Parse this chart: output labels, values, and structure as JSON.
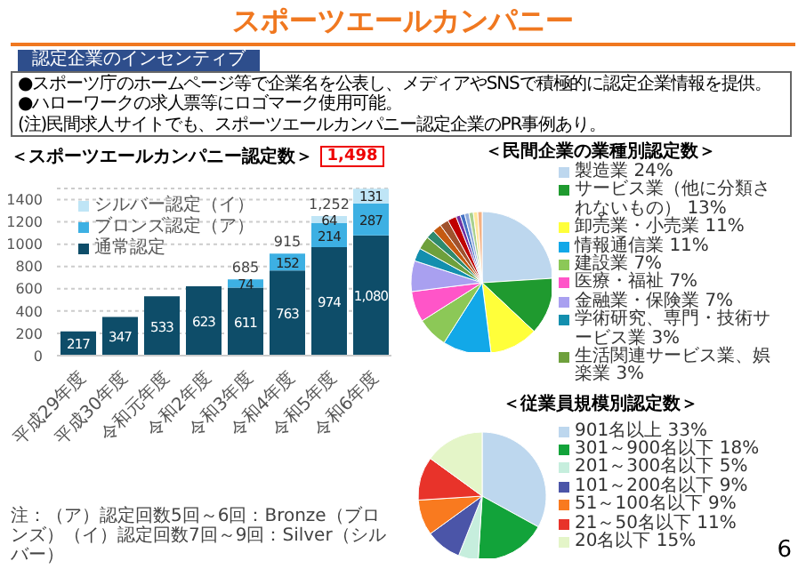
{
  "chart_data": [
    {
      "type": "other",
      "title": "スポーツエールカンパニー",
      "subtitle": "認定企業のインセンティブ",
      "annotations": [
        "●スポーツ庁のホームページ等で企業名を公表し、メディアやSNSで積極的に認定企業情報を提供。",
        "●ハローワークの求人票等にロゴマーク使用可能。",
        "(注)民間求人サイトでも、スポーツエールカンパニー認定企業のPR事例あり。",
        "6"
      ]
    },
    {
      "type": "bar",
      "title": "＜スポーツエールカンパニー認定数＞",
      "stacked": true,
      "categories": [
        "平成29年度",
        "平成30年度",
        "令和元年度",
        "令和2年度",
        "令和3年度",
        "令和4年度",
        "令和5年度",
        "令和6年度"
      ],
      "series": [
        {
          "name": "通常認定",
          "color": "#0e4d69",
          "values": [
            217,
            347,
            533,
            623,
            611,
            763,
            974,
            1080
          ],
          "value_labels": [
            "217",
            "347",
            "533",
            "623",
            "611",
            "763",
            "974",
            "1,080"
          ]
        },
        {
          "name": "ブロンズ認定（ア）",
          "color": "#3db0e3",
          "values": [
            null,
            null,
            null,
            null,
            74,
            152,
            214,
            287
          ],
          "value_labels": [
            null,
            null,
            null,
            null,
            "74",
            "152",
            "214",
            "287"
          ]
        },
        {
          "name": "シルバー認定（イ）",
          "color": "#bfe5f6",
          "values": [
            null,
            null,
            null,
            null,
            null,
            null,
            64,
            131
          ],
          "value_labels": [
            null,
            null,
            null,
            null,
            null,
            null,
            "64",
            "131"
          ]
        }
      ],
      "totals": [
        null,
        null,
        null,
        null,
        "685",
        "915",
        "1,252",
        null
      ],
      "ylim": [
        0,
        1500
      ],
      "yticks": [
        0,
        200,
        400,
        600,
        800,
        1000,
        1200,
        1400
      ],
      "grid": "y",
      "legend": "top left",
      "annotations": [
        "1,498",
        "注：（ア）認定回数5回～6回：Bronze（ブロンズ）（イ）認定回数7回～9回：Silver（シルバー）"
      ]
    },
    {
      "type": "pie",
      "title": "＜民間企業の業種別認定数＞",
      "legend": "right",
      "categories": [
        "製造業",
        "サービス業（他に分類されないもの）",
        "卸売業・小売業",
        "情報通信業",
        "建設業",
        "医療・福祉",
        "金融業・保険業",
        "学術研究、専門・技術サービス業",
        "生活関連サービス業、娯楽業",
        null,
        null,
        null,
        null,
        null,
        null,
        null,
        null,
        null,
        null
      ],
      "values": [
        24,
        13,
        11,
        11,
        7,
        7,
        7,
        3,
        3,
        2,
        2,
        2,
        2,
        1,
        1,
        1,
        1,
        1,
        1
      ],
      "value_labels": [
        "24%",
        "13%",
        "11%",
        "11%",
        "7%",
        "7%",
        "7%",
        "3%",
        "3%",
        null,
        null,
        null,
        null,
        null,
        null,
        null,
        null,
        null,
        null
      ],
      "colors": [
        "#bdd7ee",
        "#1f9a2f",
        "#ffff3a",
        "#12a8e8",
        "#8cc857",
        "#ff55c8",
        "#a9a0f0",
        "#138fae",
        "#6ea03c",
        "#2e8a6e",
        "#c55a11",
        "#a0522d",
        "#c00000",
        "#7030a0",
        "#4472c4",
        "#8faadc",
        "#a9d18e",
        "#ffe699",
        "#f4b183"
      ]
    },
    {
      "type": "pie",
      "title": "＜従業員規模別認定数＞",
      "legend": "right",
      "categories": [
        "901名以上",
        "301～900名以下",
        "201～300名以下",
        "101～200名以下",
        "51～100名以下",
        "21～50名以下",
        "20名以下"
      ],
      "values": [
        33,
        18,
        5,
        9,
        9,
        11,
        15
      ],
      "value_labels": [
        "33%",
        "18%",
        "5%",
        "9%",
        "9%",
        "11%",
        "15%"
      ],
      "colors": [
        "#bdd7ee",
        "#12a33a",
        "#c6eedd",
        "#4b55a8",
        "#f97a1f",
        "#e8332a",
        "#e4f5c8"
      ]
    }
  ]
}
